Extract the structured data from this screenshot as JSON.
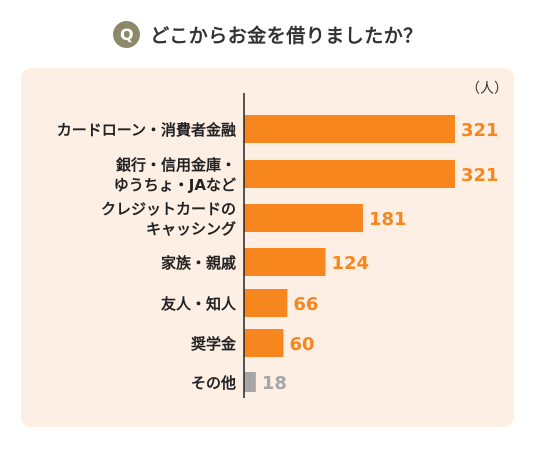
{
  "question": {
    "badge": "Q",
    "title": "どこからお金を借りましたか？"
  },
  "colors": {
    "bar_primary": "#f7861e",
    "bar_other": "#a6a6a6",
    "value_primary": "#f7861e",
    "value_other": "#a6a6a6",
    "panel_bg": "#fdefe4",
    "badge_bg": "#8c8869"
  },
  "chart_data": {
    "type": "bar",
    "orientation": "horizontal",
    "unit": "（人）",
    "categories": [
      [
        "カードローン・消費者金融"
      ],
      [
        "銀行・信用金庫・",
        "ゆうちょ・JAなど"
      ],
      [
        "クレジットカードの",
        "キャッシング"
      ],
      [
        "家族・親戚"
      ],
      [
        "友人・知人"
      ],
      [
        "奨学金"
      ],
      [
        "その他"
      ]
    ],
    "values": [
      321,
      321,
      181,
      124,
      66,
      60,
      18
    ],
    "xlim": [
      0,
      321
    ],
    "grid": false,
    "legend": false
  }
}
